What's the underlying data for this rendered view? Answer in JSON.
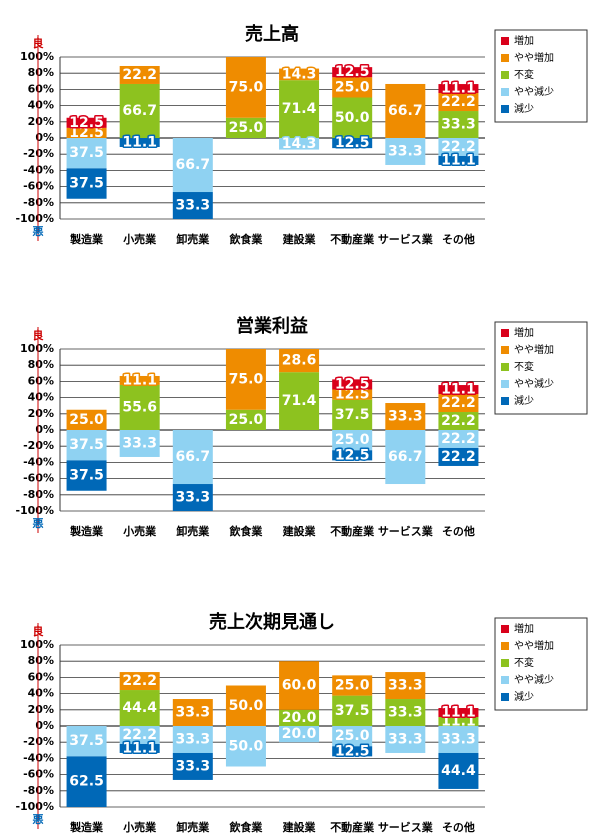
{
  "chart_data": [
    {
      "type": "diverging-stacked-bar",
      "title": "売上高",
      "categories": [
        "製造業",
        "小売業",
        "卸売業",
        "飲食業",
        "建設業",
        "不動産業",
        "サービス業",
        "その他"
      ],
      "y_top_label": "良",
      "y_bottom_label": "悪",
      "ylim": [
        -100,
        100
      ],
      "yticks": [
        {
          "value": 100,
          "label": "100%"
        },
        {
          "value": 80,
          "label": "80%"
        },
        {
          "value": 60,
          "label": "60%"
        },
        {
          "value": 40,
          "label": "40%"
        },
        {
          "value": 20,
          "label": "20%"
        },
        {
          "value": 0,
          "label": "0%"
        },
        {
          "value": -20,
          "label": "-20%"
        },
        {
          "value": -40,
          "label": "-40%"
        },
        {
          "value": -60,
          "label": "-60%"
        },
        {
          "value": -80,
          "label": "-80%"
        },
        {
          "value": -100,
          "label": "-100%"
        }
      ],
      "grid": true,
      "series": [
        {
          "name": "増加",
          "color": "#d9001b",
          "values": [
            12.5,
            0,
            0,
            0,
            0,
            12.5,
            0,
            11.1
          ],
          "value_labels": [
            "12.5",
            null,
            null,
            null,
            null,
            "12.5",
            null,
            "11.1"
          ]
        },
        {
          "name": "やや増加",
          "color": "#ef8c00",
          "values": [
            12.5,
            22.2,
            0,
            75.0,
            14.3,
            25.0,
            66.7,
            22.2
          ],
          "value_labels": [
            "12.5",
            "22.2",
            null,
            "75.0",
            "14.3",
            "25.0",
            "66.7",
            "22.2"
          ]
        },
        {
          "name": "不変",
          "color": "#8dc21f",
          "values": [
            0,
            66.7,
            0,
            25.0,
            71.4,
            50.0,
            0,
            33.3
          ],
          "value_labels": [
            null,
            "66.7",
            null,
            "25.0",
            "71.4",
            "50.0",
            null,
            "33.3"
          ]
        },
        {
          "name": "やや減少",
          "color": "#8fd2f2",
          "values": [
            37.5,
            0,
            66.7,
            0,
            14.3,
            0,
            33.3,
            22.2
          ],
          "value_labels": [
            "37.5",
            null,
            "66.7",
            null,
            "14.3",
            null,
            "33.3",
            "22.2"
          ]
        },
        {
          "name": "減少",
          "color": "#0068b7",
          "values": [
            37.5,
            11.1,
            33.3,
            0,
            0,
            12.5,
            0,
            11.1
          ],
          "value_labels": [
            "37.5",
            "11.1",
            "33.3",
            null,
            null,
            "12.5",
            null,
            "11.1"
          ]
        }
      ]
    },
    {
      "type": "diverging-stacked-bar",
      "title": "営業利益",
      "categories": [
        "製造業",
        "小売業",
        "卸売業",
        "飲食業",
        "建設業",
        "不動産業",
        "サービス業",
        "その他"
      ],
      "y_top_label": "良",
      "y_bottom_label": "悪",
      "ylim": [
        -100,
        100
      ],
      "yticks": [
        {
          "value": 100,
          "label": "100%"
        },
        {
          "value": 80,
          "label": "80%"
        },
        {
          "value": 60,
          "label": "60%"
        },
        {
          "value": 40,
          "label": "40%"
        },
        {
          "value": 20,
          "label": "20%"
        },
        {
          "value": 0,
          "label": "0%"
        },
        {
          "value": -20,
          "label": "-20%"
        },
        {
          "value": -40,
          "label": "-40%"
        },
        {
          "value": -60,
          "label": "-60%"
        },
        {
          "value": -80,
          "label": "-80%"
        },
        {
          "value": -100,
          "label": "-100%"
        }
      ],
      "grid": true,
      "series": [
        {
          "name": "増加",
          "color": "#d9001b",
          "values": [
            0,
            0,
            0,
            0,
            0,
            12.5,
            0,
            11.1
          ],
          "value_labels": [
            null,
            null,
            null,
            null,
            null,
            "12.5",
            null,
            "11.1"
          ]
        },
        {
          "name": "やや増加",
          "color": "#ef8c00",
          "values": [
            25.0,
            11.1,
            0,
            75.0,
            28.6,
            12.5,
            33.3,
            22.2
          ],
          "value_labels": [
            "25.0",
            "11.1",
            null,
            "75.0",
            "28.6",
            "12.5",
            "33.3",
            "22.2"
          ]
        },
        {
          "name": "不変",
          "color": "#8dc21f",
          "values": [
            0,
            55.6,
            0,
            25.0,
            71.4,
            37.5,
            0,
            22.2
          ],
          "value_labels": [
            null,
            "55.6",
            null,
            "25.0",
            "71.4",
            "37.5",
            null,
            "22.2"
          ]
        },
        {
          "name": "やや減少",
          "color": "#8fd2f2",
          "values": [
            37.5,
            33.3,
            66.7,
            0,
            0,
            25.0,
            66.7,
            22.2
          ],
          "value_labels": [
            "37.5",
            "33.3",
            "66.7",
            null,
            null,
            "25.0",
            "66.7",
            "22.2"
          ]
        },
        {
          "name": "減少",
          "color": "#0068b7",
          "values": [
            37.5,
            0,
            33.3,
            0,
            0,
            12.5,
            0,
            22.2
          ],
          "value_labels": [
            "37.5",
            null,
            "33.3",
            null,
            null,
            "12.5",
            null,
            "22.2"
          ]
        }
      ]
    },
    {
      "type": "diverging-stacked-bar",
      "title": "売上次期見通し",
      "categories": [
        "製造業",
        "小売業",
        "卸売業",
        "飲食業",
        "建設業",
        "不動産業",
        "サービス業",
        "その他"
      ],
      "y_top_label": "良",
      "y_bottom_label": "悪",
      "ylim": [
        -100,
        100
      ],
      "yticks": [
        {
          "value": 100,
          "label": "100%"
        },
        {
          "value": 80,
          "label": "80%"
        },
        {
          "value": 60,
          "label": "60%"
        },
        {
          "value": 40,
          "label": "40%"
        },
        {
          "value": 20,
          "label": "20%"
        },
        {
          "value": 0,
          "label": "0%"
        },
        {
          "value": -20,
          "label": "-20%"
        },
        {
          "value": -40,
          "label": "-40%"
        },
        {
          "value": -60,
          "label": "-60%"
        },
        {
          "value": -80,
          "label": "-80%"
        },
        {
          "value": -100,
          "label": "-100%"
        }
      ],
      "grid": true,
      "series": [
        {
          "name": "増加",
          "color": "#d9001b",
          "values": [
            0,
            0,
            0,
            0,
            0,
            0,
            0,
            11.1
          ],
          "value_labels": [
            null,
            null,
            null,
            null,
            null,
            null,
            null,
            "11.1"
          ]
        },
        {
          "name": "やや増加",
          "color": "#ef8c00",
          "values": [
            0,
            22.2,
            33.3,
            50.0,
            60.0,
            25.0,
            33.3,
            0
          ],
          "value_labels": [
            null,
            "22.2",
            "33.3",
            "50.0",
            "60.0",
            "25.0",
            "33.3",
            null
          ]
        },
        {
          "name": "不変",
          "color": "#8dc21f",
          "values": [
            0,
            44.4,
            0,
            0,
            20.0,
            37.5,
            33.3,
            11.1
          ],
          "value_labels": [
            null,
            "44.4",
            null,
            null,
            "20.0",
            "37.5",
            "33.3",
            "11.1"
          ]
        },
        {
          "name": "やや減少",
          "color": "#8fd2f2",
          "values": [
            37.5,
            22.2,
            33.3,
            50.0,
            20.0,
            25.0,
            33.3,
            33.3
          ],
          "value_labels": [
            "37.5",
            "22.2",
            "33.3",
            "50.0",
            "20.0",
            "25.0",
            "33.3",
            "33.3"
          ]
        },
        {
          "name": "減少",
          "color": "#0068b7",
          "values": [
            62.5,
            11.1,
            33.3,
            0,
            0,
            12.5,
            0,
            44.4
          ],
          "value_labels": [
            "62.5",
            "11.1",
            "33.3",
            null,
            null,
            "12.5",
            null,
            "44.4"
          ]
        }
      ]
    }
  ]
}
